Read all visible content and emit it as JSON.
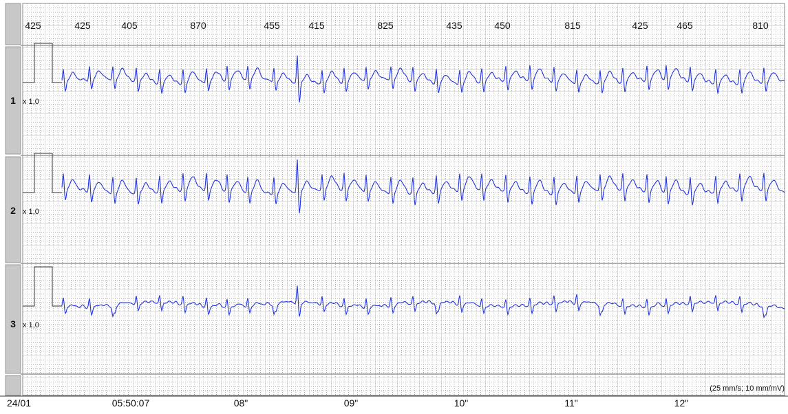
{
  "intervals": [
    "425",
    "425",
    "405",
    "870",
    "455",
    "415",
    "825",
    "435",
    "450",
    "815",
    "425",
    "465",
    "810"
  ],
  "channels": [
    {
      "label": "1",
      "gain": "x 1,0"
    },
    {
      "label": "2",
      "gain": "x 1,0"
    },
    {
      "label": "3",
      "gain": "x 1,0"
    }
  ],
  "time_axis": [
    "24/01",
    "05:50:07",
    "08\"",
    "09\"",
    "10\"",
    "11\"",
    "12\""
  ],
  "scale": "(25 mm/s; 10 mm/mV)"
}
